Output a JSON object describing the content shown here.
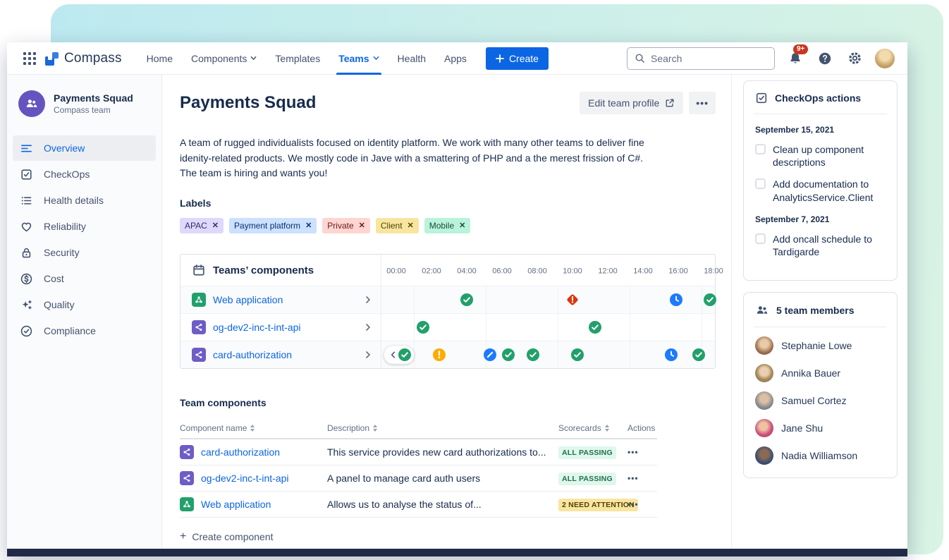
{
  "topnav": {
    "brand": "Compass",
    "items": [
      {
        "label": "Home",
        "active": false,
        "chevron": false
      },
      {
        "label": "Components",
        "active": false,
        "chevron": true
      },
      {
        "label": "Templates",
        "active": false,
        "chevron": false
      },
      {
        "label": "Teams",
        "active": true,
        "chevron": true
      },
      {
        "label": "Health",
        "active": false,
        "chevron": false
      },
      {
        "label": "Apps",
        "active": false,
        "chevron": false
      }
    ],
    "create_label": "Create",
    "search_placeholder": "Search",
    "notification_count": "9+"
  },
  "sidebar": {
    "team_name": "Payments Squad",
    "team_subtitle": "Compass team",
    "items": [
      {
        "icon": "overview",
        "label": "Overview",
        "active": true
      },
      {
        "icon": "checkops",
        "label": "CheckOps",
        "active": false
      },
      {
        "icon": "health",
        "label": "Health details",
        "active": false
      },
      {
        "icon": "reliability",
        "label": "Reliability",
        "active": false
      },
      {
        "icon": "security",
        "label": "Security",
        "active": false
      },
      {
        "icon": "cost",
        "label": "Cost",
        "active": false
      },
      {
        "icon": "quality",
        "label": "Quality",
        "active": false
      },
      {
        "icon": "compliance",
        "label": "Compliance",
        "active": false
      }
    ]
  },
  "main": {
    "title": "Payments Squad",
    "edit_button_label": "Edit team profile",
    "more_label": "•••",
    "description": "A team of rugged individualists focused on identity platform. We work with many other teams to deliver fine idenity-related products. We mostly code in Jave with a smattering of PHP and a the merest frission of C#. The team is hiring and wants you!",
    "labels_heading": "Labels",
    "tags": [
      {
        "label": "APAC",
        "bg": "#DFD8FD",
        "fg": "#352C63"
      },
      {
        "label": "Payment platform",
        "bg": "#CCE0FF",
        "fg": "#09326C"
      },
      {
        "label": "Private",
        "bg": "#FFD5D2",
        "fg": "#601E16"
      },
      {
        "label": "Client",
        "bg": "#F8E6A0",
        "fg": "#533F04"
      },
      {
        "label": "Mobile",
        "bg": "#BAF3DB",
        "fg": "#164B35"
      }
    ]
  },
  "timeline": {
    "title": "Teams’ components",
    "times": [
      "00:00",
      "02:00",
      "04:00",
      "06:00",
      "08:00",
      "10:00",
      "12:00",
      "14:00",
      "16:00",
      "18:00"
    ],
    "rows": [
      {
        "name": "Web application",
        "icon": "green",
        "scroll_pill": false,
        "icons": [
          {
            "type": "check",
            "pos": 121
          },
          {
            "type": "error",
            "pos": 271
          },
          {
            "type": "clock",
            "pos": 418
          },
          {
            "type": "check",
            "pos": 466
          }
        ]
      },
      {
        "name": "og-dev2-inc-t-int-api",
        "icon": "purple",
        "scroll_pill": false,
        "icons": [
          {
            "type": "check",
            "pos": 59
          },
          {
            "type": "check",
            "pos": 303
          }
        ]
      },
      {
        "name": "card-authorization",
        "icon": "purple",
        "scroll_pill": true,
        "icons": [
          {
            "type": "check",
            "pos": 33
          },
          {
            "type": "warn",
            "pos": 82
          },
          {
            "type": "skip",
            "pos": 154
          },
          {
            "type": "check",
            "pos": 180
          },
          {
            "type": "check",
            "pos": 215
          },
          {
            "type": "check",
            "pos": 278
          },
          {
            "type": "clock",
            "pos": 411
          },
          {
            "type": "check",
            "pos": 450
          }
        ]
      }
    ]
  },
  "components_table": {
    "heading": "Team components",
    "columns": [
      {
        "label": "Component name",
        "sortable": true
      },
      {
        "label": "Description",
        "sortable": true
      },
      {
        "label": "Scorecards",
        "sortable": true
      },
      {
        "label": "Actions",
        "sortable": false
      }
    ],
    "rows": [
      {
        "name": "card-authorization",
        "icon": "purple",
        "description": "This service provides new card authorizations to...",
        "badge": "ALL PASSING",
        "badge_type": "success"
      },
      {
        "name": "og-dev2-inc-t-int-api",
        "icon": "purple",
        "description": "A panel to manage card auth users",
        "badge": "ALL PASSING",
        "badge_type": "success"
      },
      {
        "name": "Web application",
        "icon": "green",
        "description": "Allows us to analyse the status of...",
        "badge": "2 NEED ATTENTION",
        "badge_type": "warning"
      }
    ],
    "create_label": "Create component"
  },
  "checkops_panel": {
    "title": "CheckOps actions",
    "groups": [
      {
        "date": "September 15, 2021",
        "items": [
          "Clean up component descriptions",
          "Add documentation to AnalyticsService.Client"
        ]
      },
      {
        "date": "September 7, 2021",
        "items": [
          "Add oncall schedule to Tardigarde"
        ]
      }
    ]
  },
  "members_panel": {
    "title": "5 team members",
    "people": [
      {
        "name": "Stephanie Lowe",
        "avatar": "a1"
      },
      {
        "name": "Annika Bauer",
        "avatar": "a2"
      },
      {
        "name": "Samuel Cortez",
        "avatar": "a3"
      },
      {
        "name": "Jane Shu",
        "avatar": "a4"
      },
      {
        "name": "Nadia Williamson",
        "avatar": "a5"
      }
    ]
  },
  "colors": {
    "accent": "#0C66E4",
    "success": "#22A06B",
    "error": "#DE350B",
    "warning": "#FFAB00",
    "info": "#1D7AFC"
  }
}
